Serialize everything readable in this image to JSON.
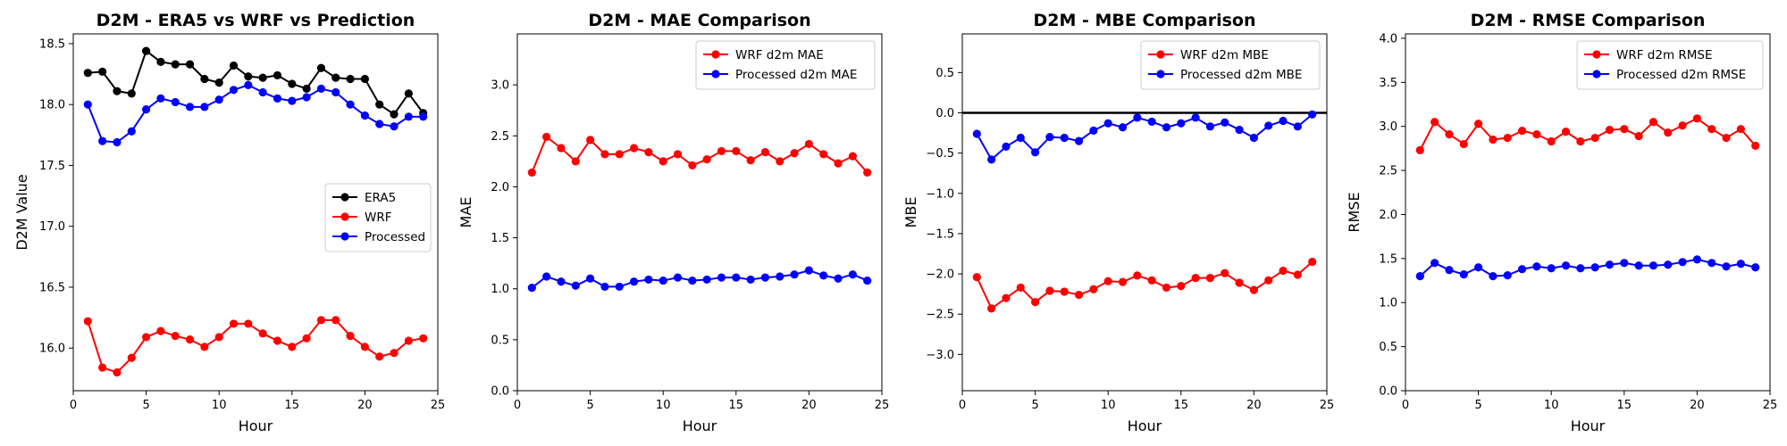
{
  "chart_data": [
    {
      "type": "line",
      "title": "D2M - ERA5 vs WRF vs Prediction",
      "xlabel": "Hour",
      "ylabel": "D2M Value",
      "xlim": [
        0,
        25
      ],
      "ylim": [
        15.65,
        18.58
      ],
      "xticks": [
        0,
        5,
        10,
        15,
        20,
        25
      ],
      "yticks": [
        16.0,
        16.5,
        17.0,
        17.5,
        18.0,
        18.5
      ],
      "tick_decimals": 1,
      "grid": false,
      "legend_position": "center-right",
      "x": [
        1,
        2,
        3,
        4,
        5,
        6,
        7,
        8,
        9,
        10,
        11,
        12,
        13,
        14,
        15,
        16,
        17,
        18,
        19,
        20,
        21,
        22,
        23,
        24
      ],
      "series": [
        {
          "name": "ERA5",
          "color": "#000000",
          "values": [
            18.26,
            18.27,
            18.11,
            18.09,
            18.44,
            18.35,
            18.33,
            18.33,
            18.21,
            18.18,
            18.32,
            18.23,
            18.22,
            18.24,
            18.17,
            18.13,
            18.3,
            18.22,
            18.21,
            18.21,
            18.0,
            17.92,
            18.09,
            17.93
          ]
        },
        {
          "name": "WRF",
          "color": "#ff0000",
          "values": [
            16.22,
            15.84,
            15.8,
            15.92,
            16.09,
            16.14,
            16.1,
            16.07,
            16.01,
            16.09,
            16.2,
            16.2,
            16.12,
            16.06,
            16.01,
            16.08,
            16.23,
            16.23,
            16.1,
            16.01,
            15.93,
            15.96,
            16.06,
            16.08
          ]
        },
        {
          "name": "Processed",
          "color": "#0000ff",
          "values": [
            18.0,
            17.7,
            17.69,
            17.78,
            17.96,
            18.05,
            18.02,
            17.98,
            17.98,
            18.04,
            18.12,
            18.16,
            18.1,
            18.05,
            18.03,
            18.06,
            18.13,
            18.1,
            18.0,
            17.91,
            17.84,
            17.82,
            17.9,
            17.9
          ]
        }
      ]
    },
    {
      "type": "line",
      "title": "D2M - MAE Comparison",
      "xlabel": "Hour",
      "ylabel": "MAE",
      "xlim": [
        0,
        25
      ],
      "ylim": [
        0,
        3.5
      ],
      "xticks": [
        0,
        5,
        10,
        15,
        20,
        25
      ],
      "yticks": [
        0.0,
        0.5,
        1.0,
        1.5,
        2.0,
        2.5,
        3.0
      ],
      "tick_decimals": 1,
      "grid": false,
      "legend_position": "top-right",
      "x": [
        1,
        2,
        3,
        4,
        5,
        6,
        7,
        8,
        9,
        10,
        11,
        12,
        13,
        14,
        15,
        16,
        17,
        18,
        19,
        20,
        21,
        22,
        23,
        24
      ],
      "series": [
        {
          "name": "WRF d2m MAE",
          "color": "#ff0000",
          "values": [
            2.14,
            2.49,
            2.38,
            2.25,
            2.46,
            2.32,
            2.32,
            2.38,
            2.34,
            2.25,
            2.32,
            2.21,
            2.27,
            2.35,
            2.35,
            2.26,
            2.34,
            2.25,
            2.33,
            2.42,
            2.32,
            2.23,
            2.3,
            2.14
          ]
        },
        {
          "name": "Processed d2m MAE",
          "color": "#0000ff",
          "values": [
            1.01,
            1.12,
            1.07,
            1.03,
            1.1,
            1.02,
            1.02,
            1.07,
            1.09,
            1.08,
            1.11,
            1.08,
            1.09,
            1.11,
            1.11,
            1.09,
            1.11,
            1.12,
            1.14,
            1.18,
            1.13,
            1.1,
            1.14,
            1.08
          ]
        }
      ]
    },
    {
      "type": "line",
      "title": "D2M - MBE Comparison",
      "xlabel": "Hour",
      "ylabel": "MBE",
      "xlim": [
        0,
        25
      ],
      "ylim": [
        -3.45,
        0.98
      ],
      "xticks": [
        0,
        5,
        10,
        15,
        20,
        25
      ],
      "yticks": [
        -3.0,
        -2.5,
        -2.0,
        -1.5,
        -1.0,
        -0.5,
        0.0,
        0.5
      ],
      "tick_decimals": 1,
      "grid": false,
      "zero_line": true,
      "legend_position": "top-right",
      "x": [
        1,
        2,
        3,
        4,
        5,
        6,
        7,
        8,
        9,
        10,
        11,
        12,
        13,
        14,
        15,
        16,
        17,
        18,
        19,
        20,
        21,
        22,
        23,
        24
      ],
      "series": [
        {
          "name": "WRF d2m MBE",
          "color": "#ff0000",
          "values": [
            -2.04,
            -2.43,
            -2.3,
            -2.17,
            -2.35,
            -2.21,
            -2.22,
            -2.26,
            -2.19,
            -2.09,
            -2.1,
            -2.02,
            -2.08,
            -2.17,
            -2.15,
            -2.05,
            -2.05,
            -1.99,
            -2.11,
            -2.2,
            -2.08,
            -1.96,
            -2.01,
            -1.85
          ]
        },
        {
          "name": "Processed d2m MBE",
          "color": "#0000ff",
          "values": [
            -0.26,
            -0.58,
            -0.42,
            -0.31,
            -0.49,
            -0.3,
            -0.31,
            -0.35,
            -0.22,
            -0.13,
            -0.18,
            -0.06,
            -0.11,
            -0.18,
            -0.13,
            -0.06,
            -0.17,
            -0.12,
            -0.21,
            -0.31,
            -0.16,
            -0.1,
            -0.17,
            -0.02
          ]
        }
      ]
    },
    {
      "type": "line",
      "title": "D2M - RMSE Comparison",
      "xlabel": "Hour",
      "ylabel": "RMSE",
      "xlim": [
        0,
        25
      ],
      "ylim": [
        0,
        4.05
      ],
      "xticks": [
        0,
        5,
        10,
        15,
        20,
        25
      ],
      "yticks": [
        0.0,
        0.5,
        1.0,
        1.5,
        2.0,
        2.5,
        3.0,
        3.5,
        4.0
      ],
      "tick_decimals": 1,
      "grid": false,
      "legend_position": "top-right",
      "x": [
        1,
        2,
        3,
        4,
        5,
        6,
        7,
        8,
        9,
        10,
        11,
        12,
        13,
        14,
        15,
        16,
        17,
        18,
        19,
        20,
        21,
        22,
        23,
        24
      ],
      "series": [
        {
          "name": "WRF d2m RMSE",
          "color": "#ff0000",
          "values": [
            2.73,
            3.05,
            2.91,
            2.8,
            3.03,
            2.85,
            2.87,
            2.95,
            2.91,
            2.83,
            2.94,
            2.83,
            2.87,
            2.96,
            2.97,
            2.89,
            3.05,
            2.93,
            3.01,
            3.09,
            2.97,
            2.87,
            2.97,
            2.78
          ]
        },
        {
          "name": "Processed d2m RMSE",
          "color": "#0000ff",
          "values": [
            1.3,
            1.45,
            1.37,
            1.32,
            1.4,
            1.3,
            1.31,
            1.38,
            1.41,
            1.39,
            1.42,
            1.39,
            1.4,
            1.43,
            1.45,
            1.42,
            1.42,
            1.43,
            1.46,
            1.49,
            1.45,
            1.41,
            1.44,
            1.4
          ]
        }
      ]
    }
  ]
}
